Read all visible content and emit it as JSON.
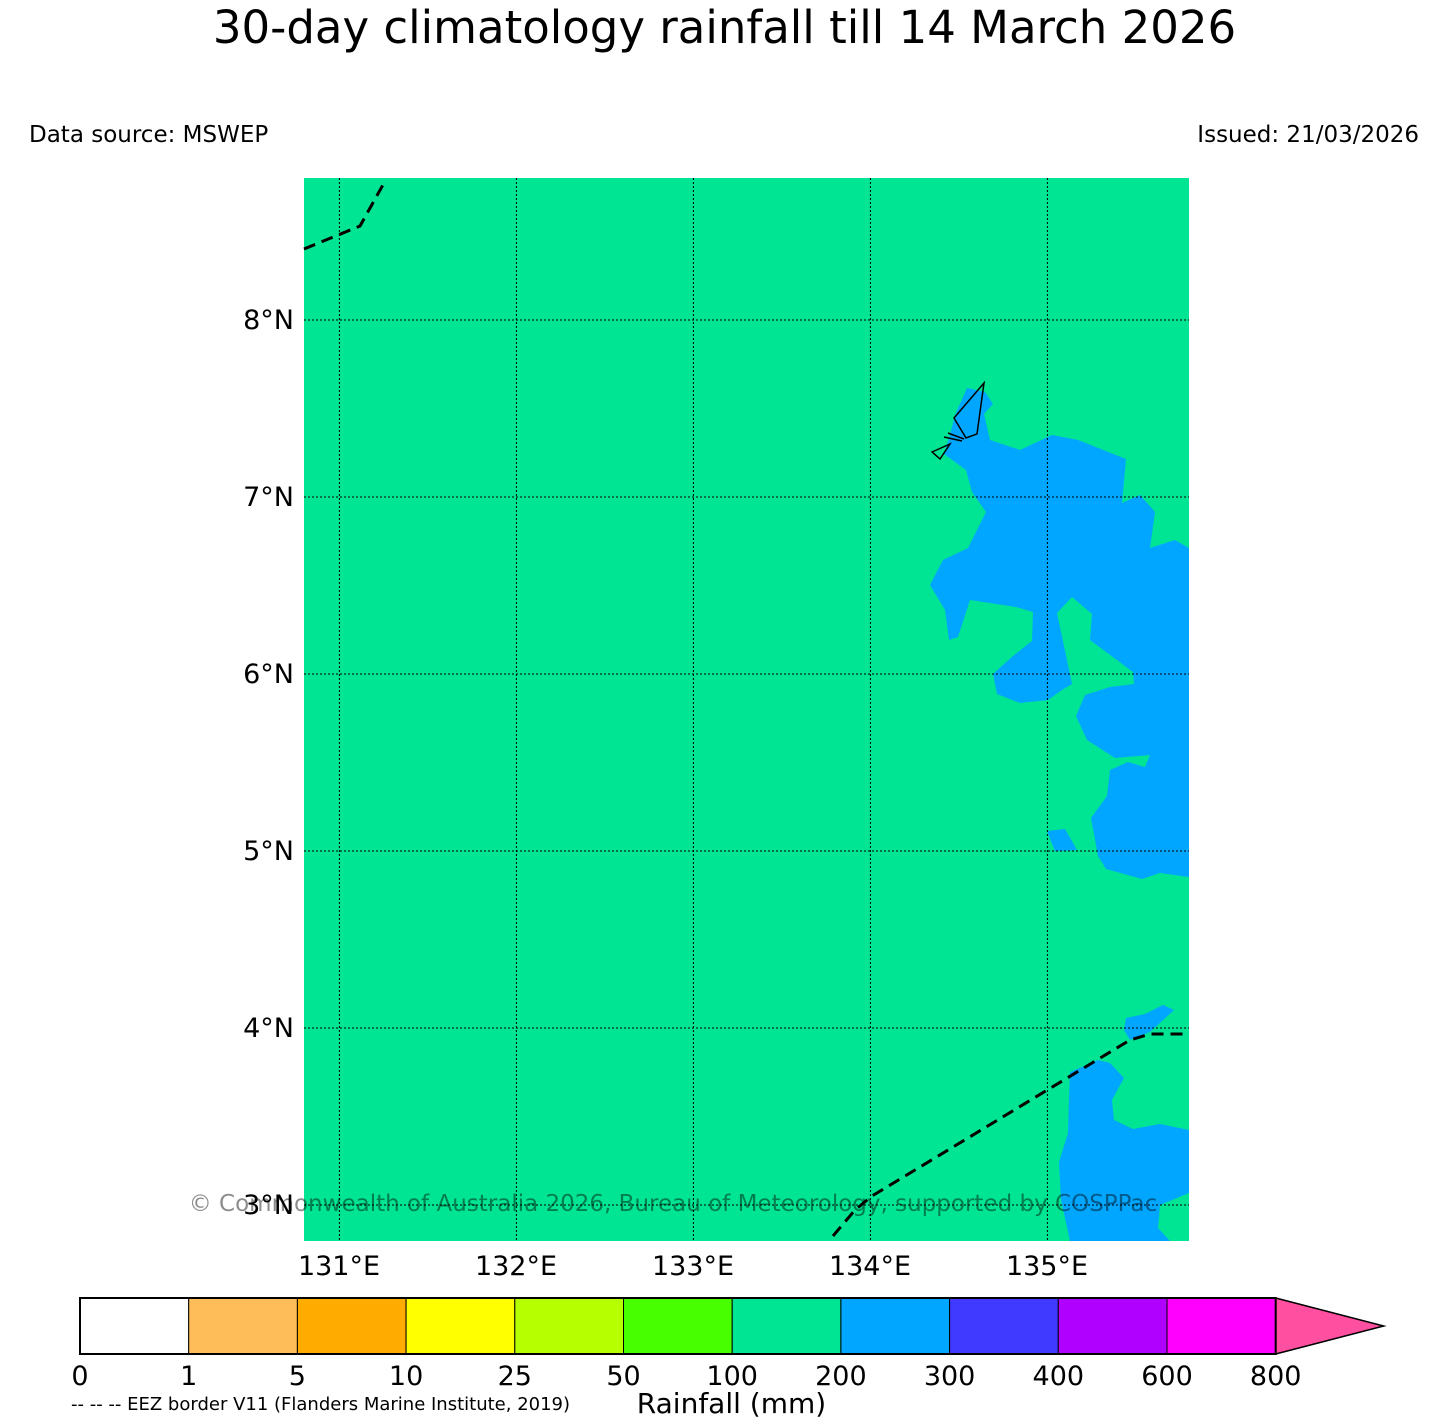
{
  "header": {
    "title": "30-day climatology rainfall till 14 March 2026",
    "data_source": "Data source: MSWEP",
    "issued": "Issued: 21/03/2026"
  },
  "map": {
    "lon_range": [
      130.8,
      135.8
    ],
    "lat_range": [
      2.8,
      8.8
    ],
    "lon_ticks": [
      {
        "value": 131,
        "label": "131°E"
      },
      {
        "value": 132,
        "label": "132°E"
      },
      {
        "value": 133,
        "label": "133°E"
      },
      {
        "value": 134,
        "label": "134°E"
      },
      {
        "value": 135,
        "label": "135°E"
      }
    ],
    "lat_ticks": [
      {
        "value": 3,
        "label": "3°N"
      },
      {
        "value": 4,
        "label": "4°N"
      },
      {
        "value": 5,
        "label": "5°N"
      },
      {
        "value": 6,
        "label": "6°N"
      },
      {
        "value": 7,
        "label": "7°N"
      },
      {
        "value": 8,
        "label": "8°N"
      }
    ],
    "background_class": "100-200 mm",
    "grid": "dotted",
    "copyright": "© Commonwealth of Australia 2026, Bureau of Meteorology, supported by COSPPac",
    "layers": [
      {
        "name": "EEZ border",
        "style": "dashed"
      },
      {
        "name": "coastline",
        "style": "solid"
      }
    ]
  },
  "colorbar": {
    "label": "Rainfall (mm)",
    "ticks": [
      "0",
      "1",
      "5",
      "10",
      "25",
      "50",
      "100",
      "200",
      "300",
      "400",
      "600",
      "800"
    ],
    "colors": [
      "#ffffff",
      "#ffbd59",
      "#ffab00",
      "#ffff00",
      "#b5ff00",
      "#48ff00",
      "#00e593",
      "#00a6ff",
      "#4039ff",
      "#b000ff",
      "#ff00ff"
    ],
    "extend_color": "#ff4fa0"
  },
  "footnote": "-- -- -- EEZ border V11 (Flanders Marine Institute, 2019)"
}
